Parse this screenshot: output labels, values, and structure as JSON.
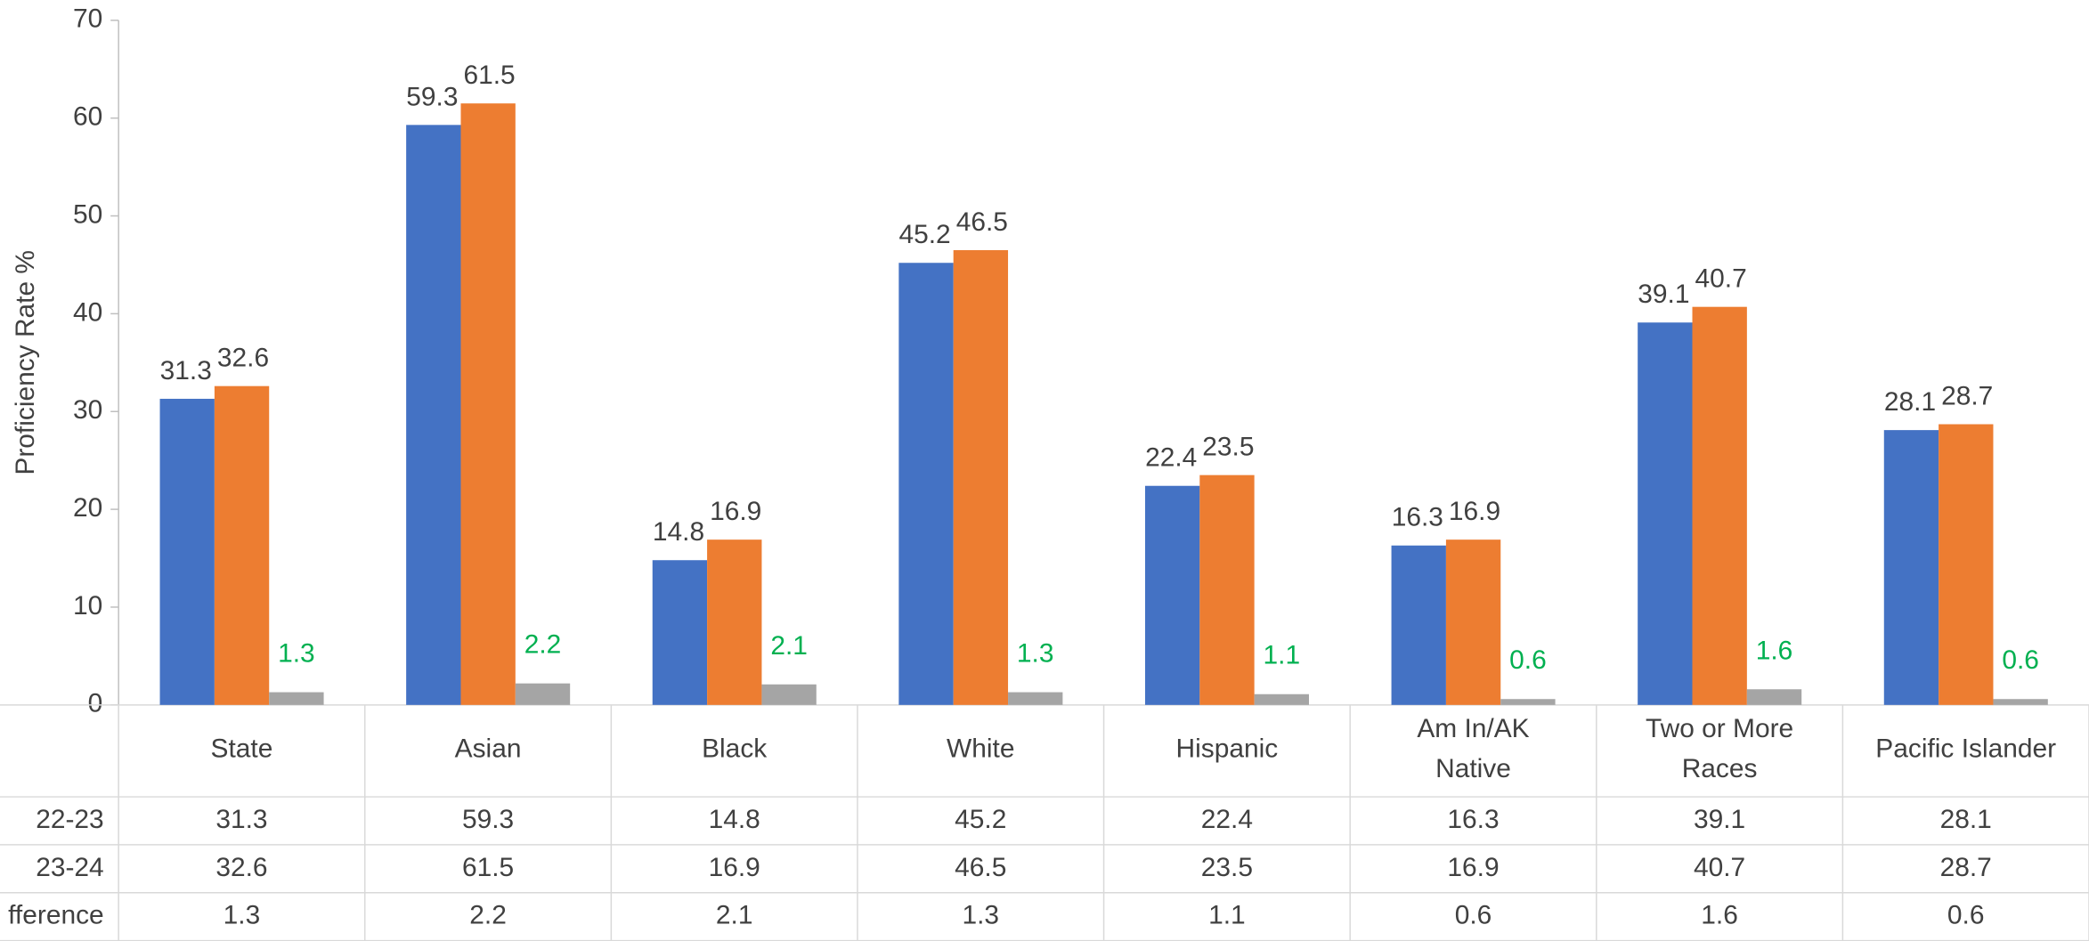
{
  "chart_data": {
    "type": "bar",
    "y_axis_label": "Proficiency Rate %",
    "categories": [
      "State",
      "Asian",
      "Black",
      "White",
      "Hispanic",
      "Am In/AK\nNative",
      "Two or More\nRaces",
      "Pacific Islander"
    ],
    "series": [
      {
        "name": "22-23",
        "color": "#4472c4",
        "label_color": "#404040",
        "values": [
          31.3,
          59.3,
          14.8,
          45.2,
          22.4,
          16.3,
          39.1,
          28.1
        ]
      },
      {
        "name": "23-24",
        "color": "#ed7d31",
        "label_color": "#404040",
        "values": [
          32.6,
          61.5,
          16.9,
          46.5,
          23.5,
          16.9,
          40.7,
          28.7
        ]
      },
      {
        "name": "fference",
        "color": "#a5a5a5",
        "label_color": "#00b050",
        "values": [
          1.3,
          2.2,
          2.1,
          1.3,
          1.1,
          0.6,
          1.6,
          0.6
        ]
      }
    ],
    "ylim": [
      0,
      70
    ],
    "yticks": [
      0,
      10,
      20,
      30,
      40,
      50,
      60,
      70
    ],
    "grid": false
  }
}
